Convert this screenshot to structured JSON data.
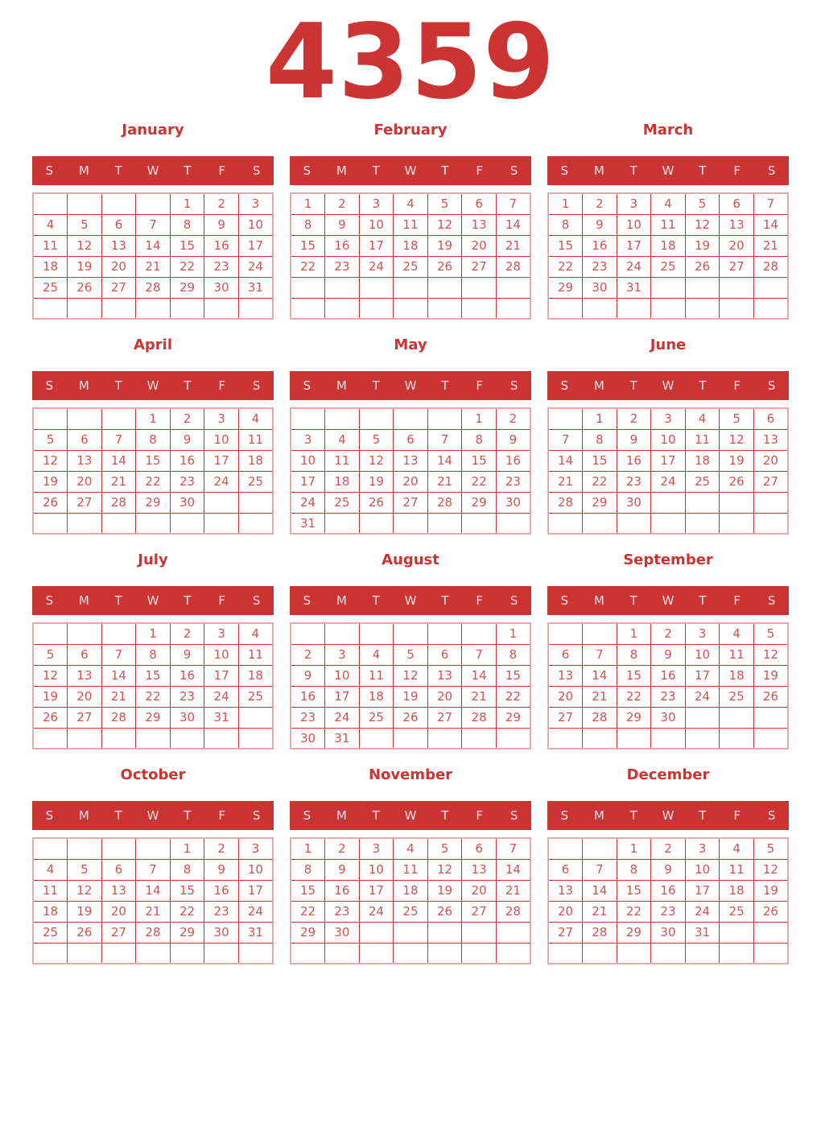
{
  "page": {
    "year": "4359"
  },
  "colors": {
    "accent": "#cc3333",
    "day_number": "#d05252",
    "grid_outer_border": "#e8a9a9",
    "band_text": "#f4e0e0"
  },
  "weekdays": [
    "S",
    "M",
    "T",
    "W",
    "T",
    "F",
    "S"
  ],
  "months": [
    {
      "name": "January",
      "weeks": [
        [
          "",
          "",
          "",
          "",
          "1",
          "2",
          "3"
        ],
        [
          "4",
          "5",
          "6",
          "7",
          "8",
          "9",
          "10"
        ],
        [
          "11",
          "12",
          "13",
          "14",
          "15",
          "16",
          "17"
        ],
        [
          "18",
          "19",
          "20",
          "21",
          "22",
          "23",
          "24"
        ],
        [
          "25",
          "26",
          "27",
          "28",
          "29",
          "30",
          "31"
        ],
        [
          "",
          "",
          "",
          "",
          "",
          "",
          ""
        ]
      ]
    },
    {
      "name": "February",
      "weeks": [
        [
          "1",
          "2",
          "3",
          "4",
          "5",
          "6",
          "7"
        ],
        [
          "8",
          "9",
          "10",
          "11",
          "12",
          "13",
          "14"
        ],
        [
          "15",
          "16",
          "17",
          "18",
          "19",
          "20",
          "21"
        ],
        [
          "22",
          "23",
          "24",
          "25",
          "26",
          "27",
          "28"
        ],
        [
          "",
          "",
          "",
          "",
          "",
          "",
          ""
        ],
        [
          "",
          "",
          "",
          "",
          "",
          "",
          ""
        ]
      ]
    },
    {
      "name": "March",
      "weeks": [
        [
          "1",
          "2",
          "3",
          "4",
          "5",
          "6",
          "7"
        ],
        [
          "8",
          "9",
          "10",
          "11",
          "12",
          "13",
          "14"
        ],
        [
          "15",
          "16",
          "17",
          "18",
          "19",
          "20",
          "21"
        ],
        [
          "22",
          "23",
          "24",
          "25",
          "26",
          "27",
          "28"
        ],
        [
          "29",
          "30",
          "31",
          "",
          "",
          "",
          ""
        ],
        [
          "",
          "",
          "",
          "",
          "",
          "",
          ""
        ]
      ]
    },
    {
      "name": "April",
      "weeks": [
        [
          "",
          "",
          "",
          "1",
          "2",
          "3",
          "4"
        ],
        [
          "5",
          "6",
          "7",
          "8",
          "9",
          "10",
          "11"
        ],
        [
          "12",
          "13",
          "14",
          "15",
          "16",
          "17",
          "18"
        ],
        [
          "19",
          "20",
          "21",
          "22",
          "23",
          "24",
          "25"
        ],
        [
          "26",
          "27",
          "28",
          "29",
          "30",
          "",
          ""
        ],
        [
          "",
          "",
          "",
          "",
          "",
          "",
          ""
        ]
      ]
    },
    {
      "name": "May",
      "weeks": [
        [
          "",
          "",
          "",
          "",
          "",
          "1",
          "2"
        ],
        [
          "3",
          "4",
          "5",
          "6",
          "7",
          "8",
          "9"
        ],
        [
          "10",
          "11",
          "12",
          "13",
          "14",
          "15",
          "16"
        ],
        [
          "17",
          "18",
          "19",
          "20",
          "21",
          "22",
          "23"
        ],
        [
          "24",
          "25",
          "26",
          "27",
          "28",
          "29",
          "30"
        ],
        [
          "31",
          "",
          "",
          "",
          "",
          "",
          ""
        ]
      ]
    },
    {
      "name": "June",
      "weeks": [
        [
          "",
          "1",
          "2",
          "3",
          "4",
          "5",
          "6"
        ],
        [
          "7",
          "8",
          "9",
          "10",
          "11",
          "12",
          "13"
        ],
        [
          "14",
          "15",
          "16",
          "17",
          "18",
          "19",
          "20"
        ],
        [
          "21",
          "22",
          "23",
          "24",
          "25",
          "26",
          "27"
        ],
        [
          "28",
          "29",
          "30",
          "",
          "",
          "",
          ""
        ],
        [
          "",
          "",
          "",
          "",
          "",
          "",
          ""
        ]
      ]
    },
    {
      "name": "July",
      "weeks": [
        [
          "",
          "",
          "",
          "1",
          "2",
          "3",
          "4"
        ],
        [
          "5",
          "6",
          "7",
          "8",
          "9",
          "10",
          "11"
        ],
        [
          "12",
          "13",
          "14",
          "15",
          "16",
          "17",
          "18"
        ],
        [
          "19",
          "20",
          "21",
          "22",
          "23",
          "24",
          "25"
        ],
        [
          "26",
          "27",
          "28",
          "29",
          "30",
          "31",
          ""
        ],
        [
          "",
          "",
          "",
          "",
          "",
          "",
          ""
        ]
      ]
    },
    {
      "name": "August",
      "weeks": [
        [
          "",
          "",
          "",
          "",
          "",
          "",
          "1"
        ],
        [
          "2",
          "3",
          "4",
          "5",
          "6",
          "7",
          "8"
        ],
        [
          "9",
          "10",
          "11",
          "12",
          "13",
          "14",
          "15"
        ],
        [
          "16",
          "17",
          "18",
          "19",
          "20",
          "21",
          "22"
        ],
        [
          "23",
          "24",
          "25",
          "26",
          "27",
          "28",
          "29"
        ],
        [
          "30",
          "31",
          "",
          "",
          "",
          "",
          ""
        ]
      ]
    },
    {
      "name": "September",
      "weeks": [
        [
          "",
          "",
          "1",
          "2",
          "3",
          "4",
          "5"
        ],
        [
          "6",
          "7",
          "8",
          "9",
          "10",
          "11",
          "12"
        ],
        [
          "13",
          "14",
          "15",
          "16",
          "17",
          "18",
          "19"
        ],
        [
          "20",
          "21",
          "22",
          "23",
          "24",
          "25",
          "26"
        ],
        [
          "27",
          "28",
          "29",
          "30",
          "",
          "",
          ""
        ],
        [
          "",
          "",
          "",
          "",
          "",
          "",
          ""
        ]
      ]
    },
    {
      "name": "October",
      "weeks": [
        [
          "",
          "",
          "",
          "",
          "1",
          "2",
          "3"
        ],
        [
          "4",
          "5",
          "6",
          "7",
          "8",
          "9",
          "10"
        ],
        [
          "11",
          "12",
          "13",
          "14",
          "15",
          "16",
          "17"
        ],
        [
          "18",
          "19",
          "20",
          "21",
          "22",
          "23",
          "24"
        ],
        [
          "25",
          "26",
          "27",
          "28",
          "29",
          "30",
          "31"
        ],
        [
          "",
          "",
          "",
          "",
          "",
          "",
          ""
        ]
      ]
    },
    {
      "name": "November",
      "weeks": [
        [
          "1",
          "2",
          "3",
          "4",
          "5",
          "6",
          "7"
        ],
        [
          "8",
          "9",
          "10",
          "11",
          "12",
          "13",
          "14"
        ],
        [
          "15",
          "16",
          "17",
          "18",
          "19",
          "20",
          "21"
        ],
        [
          "22",
          "23",
          "24",
          "25",
          "26",
          "27",
          "28"
        ],
        [
          "29",
          "30",
          "",
          "",
          "",
          "",
          ""
        ],
        [
          "",
          "",
          "",
          "",
          "",
          "",
          ""
        ]
      ]
    },
    {
      "name": "December",
      "weeks": [
        [
          "",
          "",
          "1",
          "2",
          "3",
          "4",
          "5"
        ],
        [
          "6",
          "7",
          "8",
          "9",
          "10",
          "11",
          "12"
        ],
        [
          "13",
          "14",
          "15",
          "16",
          "17",
          "18",
          "19"
        ],
        [
          "20",
          "21",
          "22",
          "23",
          "24",
          "25",
          "26"
        ],
        [
          "27",
          "28",
          "29",
          "30",
          "31",
          "",
          ""
        ],
        [
          "",
          "",
          "",
          "",
          "",
          "",
          ""
        ]
      ]
    }
  ]
}
